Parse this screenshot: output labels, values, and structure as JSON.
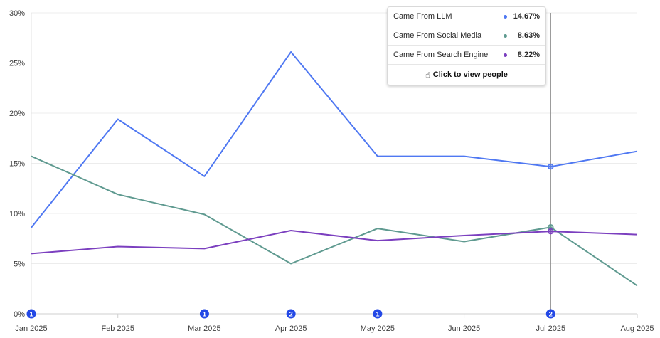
{
  "chart_data": {
    "type": "line",
    "title": "",
    "xlabel": "",
    "ylabel": "",
    "categories": [
      "Jan 2025",
      "Feb 2025",
      "Mar 2025",
      "Apr 2025",
      "May 2025",
      "Jun 2025",
      "Jul 2025",
      "Aug 2025"
    ],
    "ylim": [
      0,
      30
    ],
    "yticks": [
      "0%",
      "5%",
      "10%",
      "15%",
      "20%",
      "25%",
      "30%"
    ],
    "grid": true,
    "series": [
      {
        "name": "Came From LLM",
        "color": "#4f78f2",
        "values": [
          8.6,
          19.4,
          13.7,
          26.1,
          15.7,
          15.7,
          14.67,
          16.2
        ]
      },
      {
        "name": "Came From Social Media",
        "color": "#5f9a90",
        "values": [
          15.7,
          11.9,
          9.9,
          5.0,
          8.5,
          7.2,
          8.63,
          2.8
        ]
      },
      {
        "name": "Came From Search Engine",
        "color": "#7b3fbf",
        "values": [
          6.0,
          6.7,
          6.5,
          8.3,
          7.3,
          7.8,
          8.22,
          7.9
        ]
      }
    ],
    "annotations": [
      {
        "category": "Jan 2025",
        "label": "1"
      },
      {
        "category": "Mar 2025",
        "label": "1"
      },
      {
        "category": "Apr 2025",
        "label": "2"
      },
      {
        "category": "May 2025",
        "label": "1"
      },
      {
        "category": "Jul 2025",
        "label": "2"
      }
    ],
    "hover_category": "Jul 2025"
  },
  "tooltip": {
    "rows": [
      {
        "name": "Came From LLM",
        "value": "14.67%",
        "color": "#4f78f2"
      },
      {
        "name": "Came From Social Media",
        "value": "8.63%",
        "color": "#5f9a90"
      },
      {
        "name": "Came From Search Engine",
        "value": "8.22%",
        "color": "#7b3fbf"
      }
    ],
    "action_label": "Click to view people",
    "action_icon": "hand-pointer-icon"
  }
}
